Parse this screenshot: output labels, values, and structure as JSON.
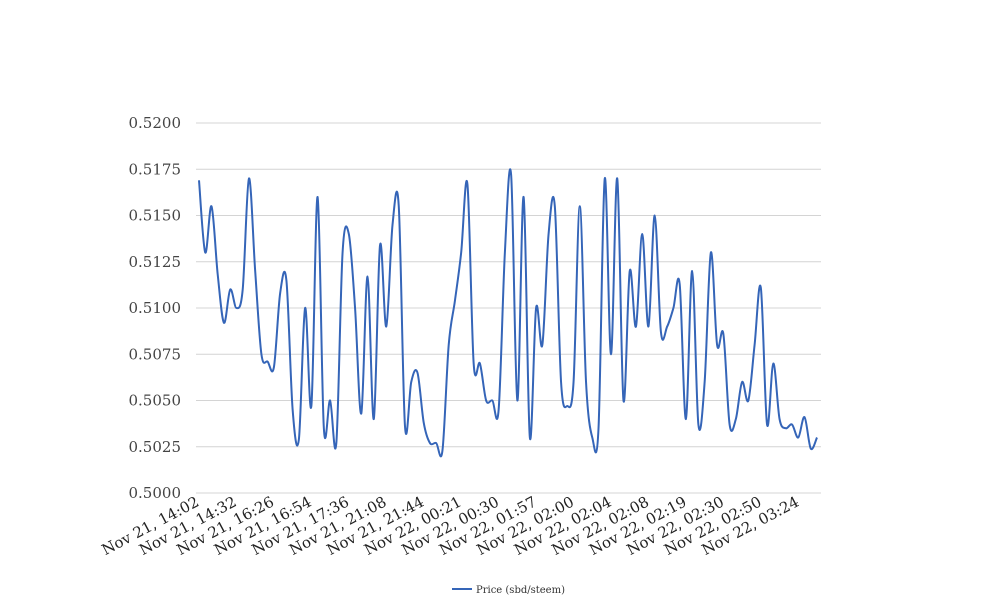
{
  "chart_data": {
    "type": "line",
    "title": "",
    "xlabel": "",
    "ylabel": "",
    "ylim": [
      0.5,
      0.52
    ],
    "yticks": [
      "0.5000",
      "0.5025",
      "0.5050",
      "0.5075",
      "0.5100",
      "0.5125",
      "0.5150",
      "0.5175",
      "0.5200"
    ],
    "xtick_labels": [
      "Nov 21, 14:02",
      "Nov 21, 14:32",
      "Nov 21, 16:26",
      "Nov 21, 16:54",
      "Nov 21, 17:36",
      "Nov 21, 21:08",
      "Nov 21, 21:44",
      "Nov 22, 00:21",
      "Nov 22, 00:30",
      "Nov 22, 01:57",
      "Nov 22, 02:00",
      "Nov 22, 02:04",
      "Nov 22, 02:08",
      "Nov 22, 02:19",
      "Nov 22, 02:30",
      "Nov 22, 02:50",
      "Nov 22, 03:24"
    ],
    "grid": true,
    "legend_position": "bottom",
    "series": [
      {
        "name": "Price (sbd/steem)",
        "color": "#3565b8",
        "values": [
          0.5169,
          0.513,
          0.5155,
          0.5118,
          0.5092,
          0.511,
          0.51,
          0.511,
          0.517,
          0.512,
          0.5075,
          0.5071,
          0.5068,
          0.5108,
          0.5115,
          0.5045,
          0.5029,
          0.51,
          0.5047,
          0.516,
          0.5035,
          0.505,
          0.5027,
          0.513,
          0.514,
          0.51,
          0.5043,
          0.5117,
          0.504,
          0.5134,
          0.509,
          0.5145,
          0.5155,
          0.5036,
          0.506,
          0.5065,
          0.5038,
          0.5027,
          0.5027,
          0.5023,
          0.508,
          0.5104,
          0.513,
          0.5167,
          0.507,
          0.507,
          0.505,
          0.505,
          0.5045,
          0.513,
          0.5172,
          0.505,
          0.516,
          0.503,
          0.51,
          0.508,
          0.514,
          0.5155,
          0.506,
          0.5047,
          0.506,
          0.5155,
          0.506,
          0.503,
          0.5035,
          0.517,
          0.5075,
          0.517,
          0.505,
          0.512,
          0.509,
          0.514,
          0.509,
          0.515,
          0.5087,
          0.509,
          0.51,
          0.5113,
          0.504,
          0.512,
          0.5037,
          0.506,
          0.513,
          0.508,
          0.5086,
          0.5037,
          0.504,
          0.506,
          0.505,
          0.508,
          0.5111,
          0.5037,
          0.507,
          0.504,
          0.5035,
          0.5037,
          0.503,
          0.5041,
          0.5024,
          0.503
        ]
      }
    ]
  }
}
